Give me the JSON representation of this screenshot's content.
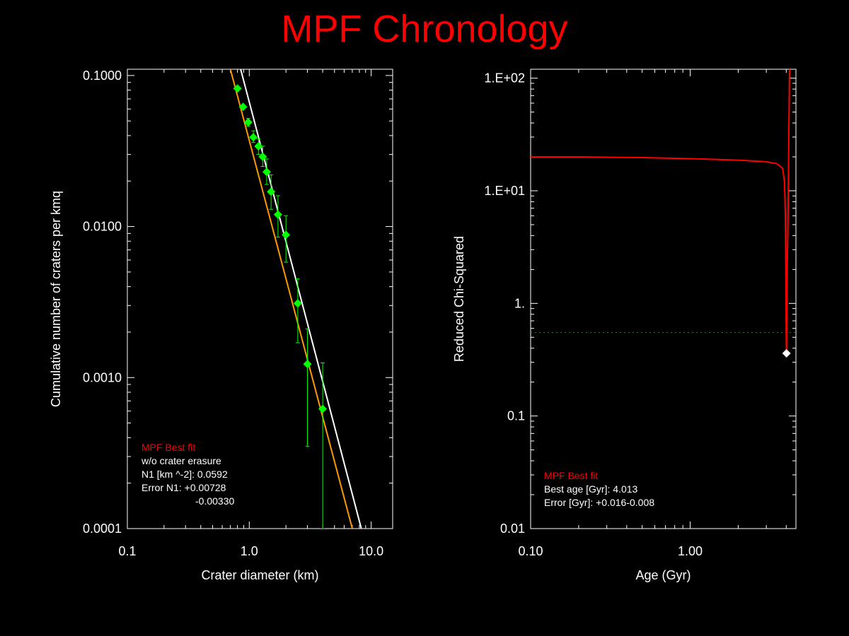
{
  "title": "MPF Chronology",
  "colors": {
    "background": "#000000",
    "title": "#ff0000",
    "axes": "#ffffff",
    "data_points": "#00ff00",
    "fit_with_erasure": "#ffffff",
    "fit_without_erasure": "#ff9900",
    "chi_curve": "#ff0000",
    "threshold": "#2e7d32",
    "best_point": "#ffffff"
  },
  "chart_data": [
    {
      "type": "scatter",
      "xlabel": "Crater diameter (km)",
      "ylabel": "Cumulative number of craters per kmq",
      "xscale": "log",
      "yscale": "log",
      "xlim": [
        0.1,
        15
      ],
      "ylim": [
        0.0001,
        0.11
      ],
      "x_ticks": [
        {
          "v": 0.1,
          "label": "0.1"
        },
        {
          "v": 1,
          "label": "1.0"
        },
        {
          "v": 10,
          "label": "10.0"
        }
      ],
      "y_ticks": [
        {
          "v": 0.0001,
          "label": "0.0001"
        },
        {
          "v": 0.001,
          "label": "0.0010"
        },
        {
          "v": 0.01,
          "label": "0.0100"
        },
        {
          "v": 0.1,
          "label": "0.1000"
        }
      ],
      "points": [
        {
          "x": 0.8,
          "y": 0.082,
          "lo": 0.082,
          "hi": 0.082
        },
        {
          "x": 0.89,
          "y": 0.062,
          "lo": 0.062,
          "hi": 0.062
        },
        {
          "x": 0.98,
          "y": 0.049,
          "lo": 0.046,
          "hi": 0.052
        },
        {
          "x": 1.08,
          "y": 0.039,
          "lo": 0.036,
          "hi": 0.043
        },
        {
          "x": 1.19,
          "y": 0.034,
          "lo": 0.03,
          "hi": 0.038
        },
        {
          "x": 1.29,
          "y": 0.029,
          "lo": 0.025,
          "hi": 0.034
        },
        {
          "x": 1.39,
          "y": 0.023,
          "lo": 0.019,
          "hi": 0.028
        },
        {
          "x": 1.51,
          "y": 0.017,
          "lo": 0.013,
          "hi": 0.022
        },
        {
          "x": 1.72,
          "y": 0.012,
          "lo": 0.0085,
          "hi": 0.016
        },
        {
          "x": 2.0,
          "y": 0.0088,
          "lo": 0.0058,
          "hi": 0.0118
        },
        {
          "x": 2.5,
          "y": 0.0031,
          "lo": 0.0017,
          "hi": 0.0045
        },
        {
          "x": 3.0,
          "y": 0.00123,
          "lo": 0.00035,
          "hi": 0.0021
        },
        {
          "x": 4.0,
          "y": 0.00062,
          "lo": 0.0001,
          "hi": 0.00125
        }
      ],
      "lines": [
        {
          "role": "fit_with_erasure",
          "color": "#ffffff",
          "x": [
            0.85,
            8.3
          ],
          "y": [
            0.11,
            0.0001
          ]
        },
        {
          "role": "fit_without_erasure",
          "color": "#ff9900",
          "x": [
            0.7,
            7.0
          ],
          "y": [
            0.11,
            0.0001
          ]
        }
      ],
      "legend": {
        "heading": "MPF Best fit",
        "lines": [
          "w/o crater erasure",
          "N1 [km ^-2]: 0.0592",
          "Error N1: +0.00728",
          "-0.00330"
        ]
      }
    },
    {
      "type": "line",
      "xlabel": "Age (Gyr)",
      "ylabel": "Reduced Chi-Squared",
      "xscale": "log",
      "yscale": "log",
      "xlim": [
        0.1,
        4.6
      ],
      "ylim": [
        0.01,
        120
      ],
      "x_ticks": [
        {
          "v": 0.1,
          "label": "0.10"
        },
        {
          "v": 1,
          "label": "1.00"
        }
      ],
      "y_ticks": [
        {
          "v": 0.01,
          "label": "0.01"
        },
        {
          "v": 0.1,
          "label": "0.1"
        },
        {
          "v": 1,
          "label": "1."
        },
        {
          "v": 10,
          "label": "1.E+01"
        },
        {
          "v": 100,
          "label": "1.E+02"
        }
      ],
      "curve": {
        "x": [
          0.1,
          0.2,
          0.5,
          1.0,
          2.0,
          3.0,
          3.5,
          3.8,
          3.9,
          3.95,
          3.98,
          4.0,
          4.01,
          4.013,
          4.02,
          4.04,
          4.1,
          4.15,
          4.2
        ],
        "y": [
          20,
          20,
          19.7,
          19.3,
          18.7,
          18.1,
          17.4,
          15.8,
          12,
          6,
          1.5,
          0.5,
          0.37,
          0.36,
          0.45,
          1.5,
          5,
          30,
          140
        ]
      },
      "threshold_y": 0.55,
      "best_point": {
        "x": 4.013,
        "y": 0.36
      },
      "legend": {
        "heading": "MPF Best fit",
        "lines": [
          "Best age [Gyr]: 4.013",
          "Error [Gyr]: +0.016-0.008"
        ]
      }
    }
  ]
}
